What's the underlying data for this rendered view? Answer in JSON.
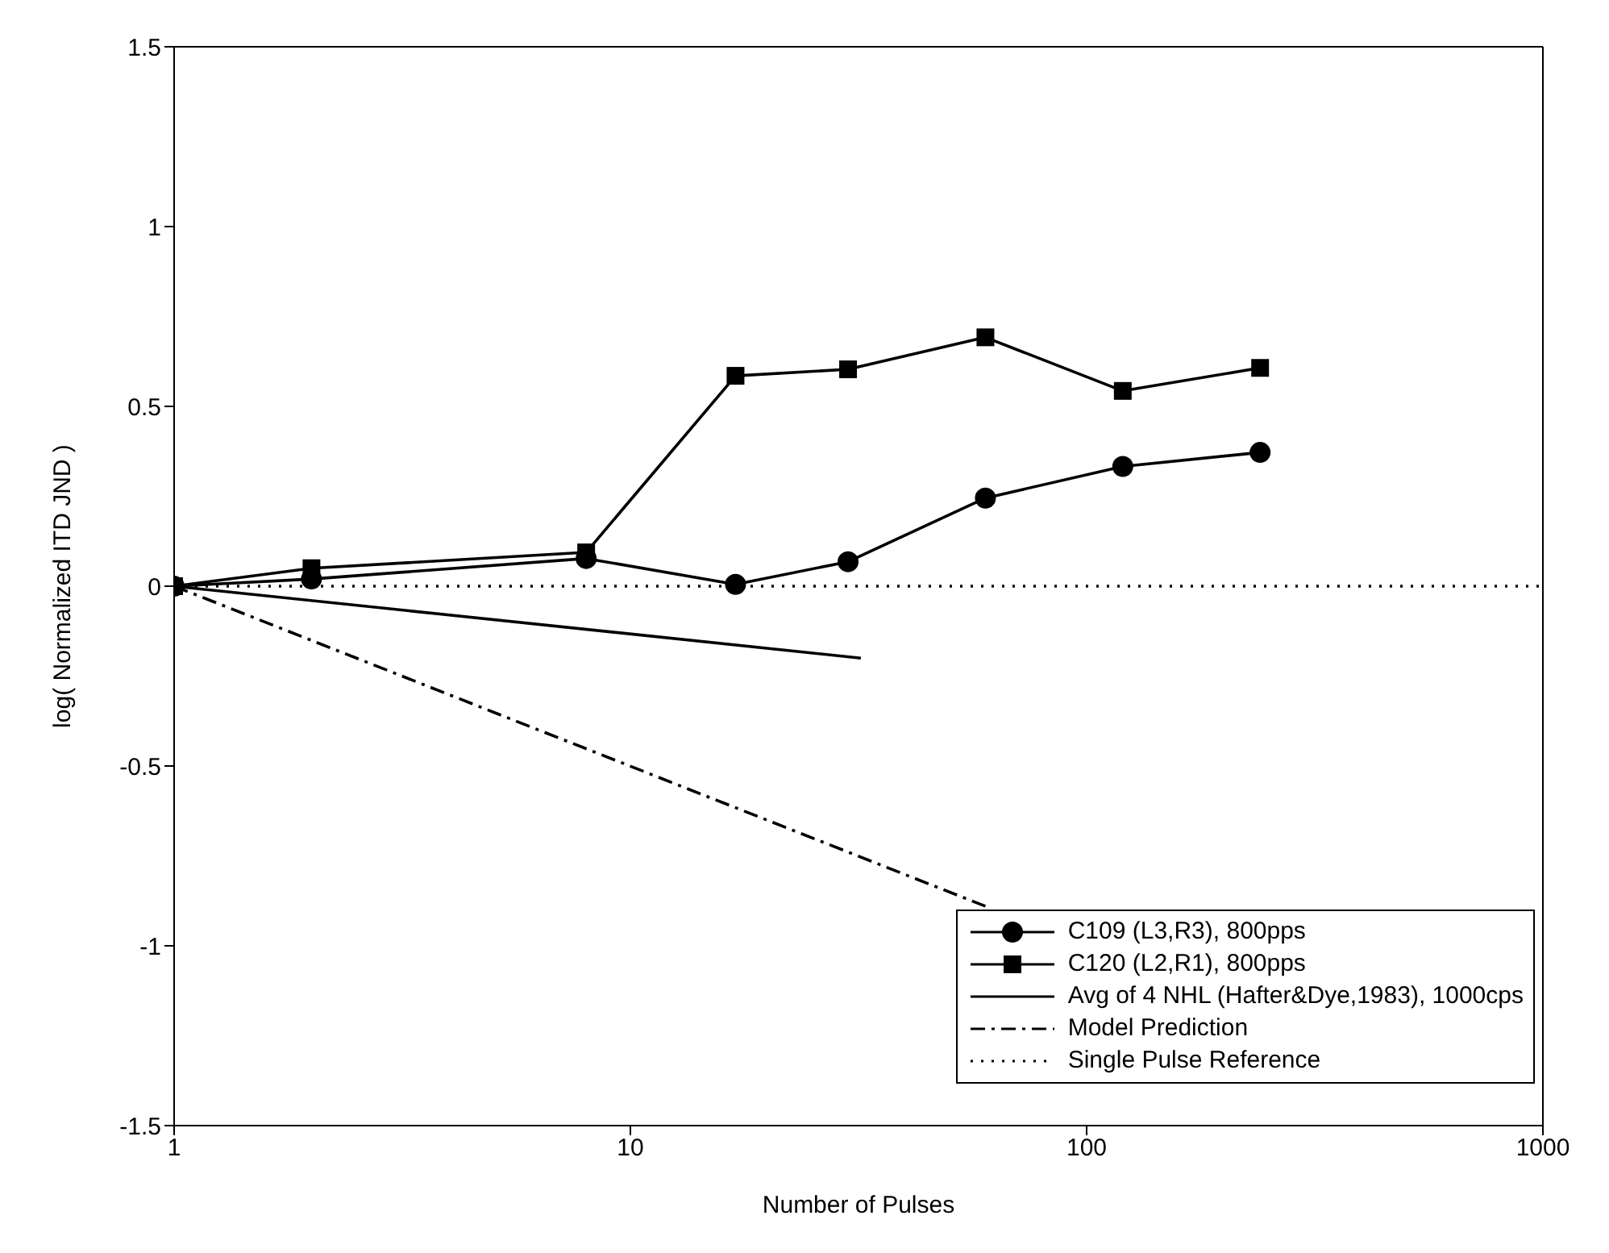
{
  "chart_data": {
    "type": "line",
    "xlabel": "Number of Pulses",
    "ylabel": "log( Normalized ITD JND )",
    "log": "x",
    "xlim": [
      1,
      1000
    ],
    "xticks": [
      1,
      10,
      100,
      1000
    ],
    "ylim": [
      -1.5,
      1.5
    ],
    "yticks": [
      -1.5,
      -1,
      -0.5,
      0,
      0.5,
      1,
      1.5
    ],
    "legend": "bottom right",
    "series": [
      {
        "name": "C109 (L3,R3), 800pps",
        "color": "#000000",
        "marker": "circle",
        "line_style": "solid",
        "x": [
          1,
          2,
          8,
          17,
          30,
          60,
          120,
          240
        ],
        "values": [
          0,
          0.02,
          0.077,
          0.005,
          0.068,
          0.245,
          0.333,
          0.372
        ]
      },
      {
        "name": "C120 (L2,R1), 800pps",
        "color": "#000000",
        "marker": "square",
        "line_style": "solid",
        "x": [
          1,
          2,
          8,
          17,
          30,
          60,
          120,
          240
        ],
        "values": [
          0,
          0.05,
          0.094,
          0.585,
          0.603,
          0.692,
          0.543,
          0.607
        ]
      },
      {
        "name": "Avg of 4 NHL (Hafter&Dye,1983), 1000cps",
        "color": "#000000",
        "marker": "none",
        "line_style": "solid",
        "x": [
          1,
          32
        ],
        "values": [
          0,
          -0.2
        ]
      },
      {
        "name": "Model Prediction",
        "color": "#000000",
        "marker": "none",
        "line_style": "dashdot",
        "x": [
          1,
          60
        ],
        "values": [
          0,
          -0.89
        ]
      },
      {
        "name": "Single Pulse Reference",
        "color": "#000000",
        "marker": "none",
        "line_style": "dotted",
        "x": [
          1,
          1000
        ],
        "values": [
          0,
          0
        ]
      }
    ]
  }
}
